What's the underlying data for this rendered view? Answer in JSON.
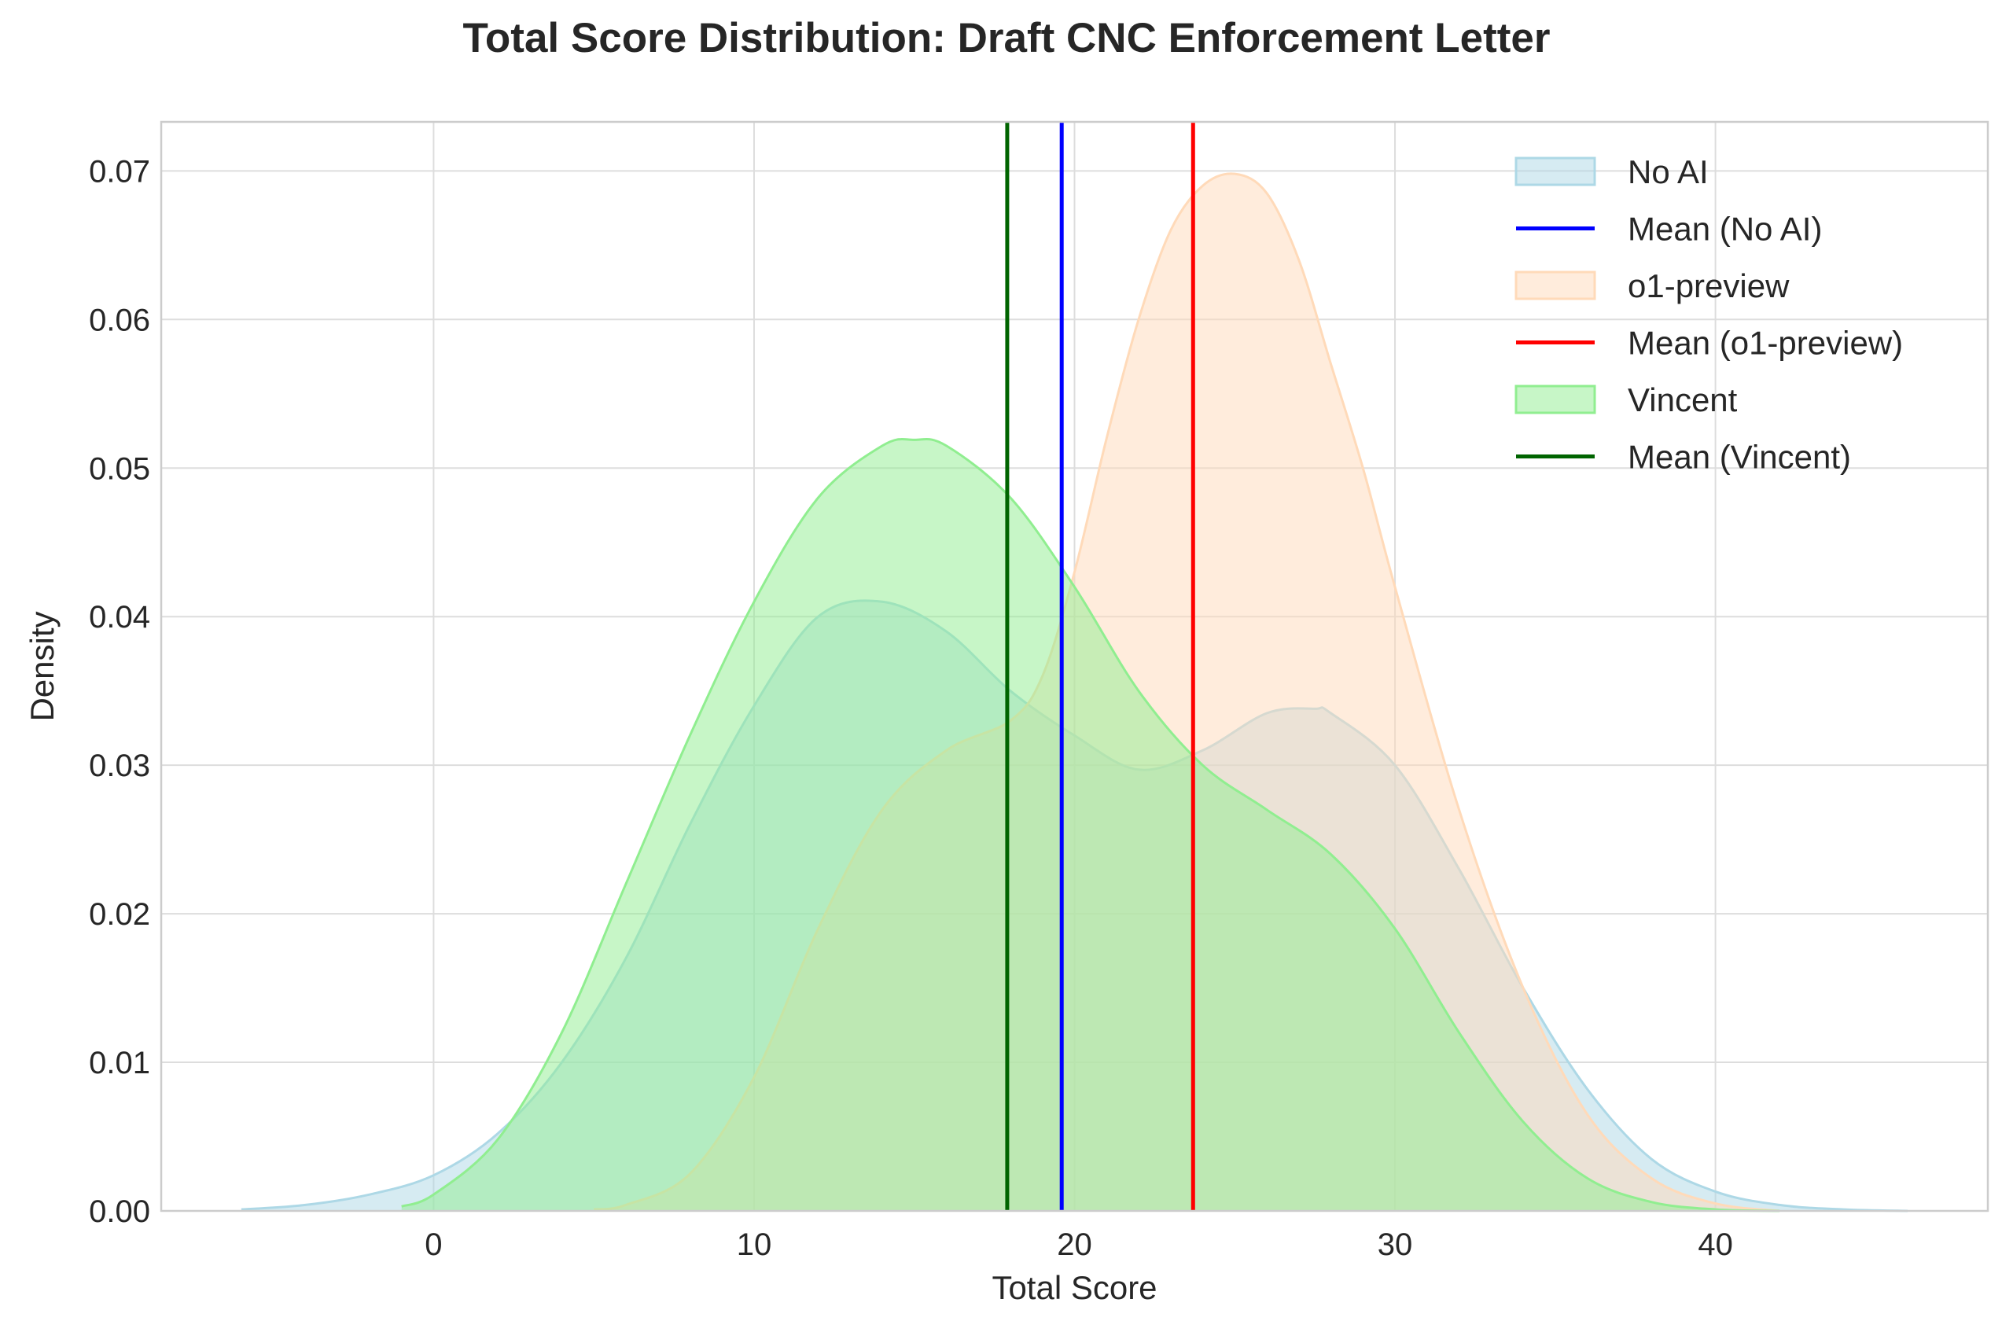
{
  "chart_data": {
    "type": "area",
    "title": "Total Score Distribution: Draft CNC Enforcement Letter",
    "xlabel": "Total Score",
    "ylabel": "Density",
    "xlim": [
      -8.5,
      48.5
    ],
    "ylim": [
      0,
      0.0733
    ],
    "xticks": [
      0,
      10,
      20,
      30,
      40
    ],
    "yticks": [
      0.0,
      0.01,
      0.02,
      0.03,
      0.04,
      0.05,
      0.06,
      0.07
    ],
    "ytick_labels": [
      "0.00",
      "0.01",
      "0.02",
      "0.03",
      "0.04",
      "0.05",
      "0.06",
      "0.07"
    ],
    "grid": true,
    "legend_position": "top-right",
    "series": [
      {
        "name": "No AI",
        "fill": "#add8e6",
        "stroke": "#add8e6",
        "fill_opacity": 0.5,
        "x": [
          -6,
          -4,
          -2,
          0,
          2,
          4,
          6,
          8,
          10,
          12,
          14,
          16,
          18,
          20,
          22,
          24,
          26,
          27.5,
          28,
          30,
          32,
          34,
          36,
          38,
          40,
          42,
          44,
          46
        ],
        "y": [
          0.0001,
          0.0004,
          0.0011,
          0.0024,
          0.0052,
          0.01,
          0.017,
          0.026,
          0.034,
          0.04,
          0.041,
          0.039,
          0.035,
          0.032,
          0.0297,
          0.031,
          0.0335,
          0.0338,
          0.0335,
          0.03,
          0.023,
          0.015,
          0.0082,
          0.0035,
          0.0013,
          0.0004,
          0.0001,
          0.0
        ]
      },
      {
        "name": "o1-preview",
        "fill": "#ffdab9",
        "stroke": "#ffdab9",
        "fill_opacity": 0.5,
        "x": [
          5,
          6,
          8,
          10,
          12,
          14,
          16,
          18,
          19,
          20,
          21,
          22,
          23,
          24,
          25,
          26,
          27,
          28,
          29,
          30,
          32,
          34,
          36,
          38,
          40,
          42
        ],
        "y": [
          0.0001,
          0.0004,
          0.0025,
          0.009,
          0.019,
          0.027,
          0.031,
          0.033,
          0.036,
          0.043,
          0.052,
          0.06,
          0.066,
          0.069,
          0.0698,
          0.0685,
          0.064,
          0.057,
          0.05,
          0.042,
          0.027,
          0.015,
          0.0065,
          0.0022,
          0.0005,
          0.0
        ]
      },
      {
        "name": "Vincent",
        "fill": "#90ee90",
        "stroke": "#90ee90",
        "fill_opacity": 0.5,
        "x": [
          -1,
          0,
          2,
          4,
          6,
          8,
          10,
          12,
          14,
          15,
          16,
          18,
          20,
          22,
          24,
          26,
          28,
          30,
          32,
          34,
          36,
          38,
          40,
          42
        ],
        "y": [
          0.0003,
          0.0011,
          0.0048,
          0.012,
          0.022,
          0.032,
          0.041,
          0.048,
          0.0515,
          0.0519,
          0.0515,
          0.048,
          0.042,
          0.035,
          0.03,
          0.027,
          0.024,
          0.019,
          0.012,
          0.006,
          0.0022,
          0.0006,
          0.0001,
          0.0
        ]
      }
    ],
    "means": [
      {
        "name": "Mean (No AI)",
        "x": 19.6,
        "color": "#0000ff"
      },
      {
        "name": "Mean (o1-preview)",
        "x": 23.7,
        "color": "#ff0000"
      },
      {
        "name": "Mean (Vincent)",
        "x": 17.9,
        "color": "#006400"
      }
    ],
    "legend": [
      {
        "label": "No AI",
        "kind": "patch",
        "color": "#add8e6"
      },
      {
        "label": "Mean (No AI)",
        "kind": "line",
        "color": "#0000ff"
      },
      {
        "label": "o1-preview",
        "kind": "patch",
        "color": "#ffdab9"
      },
      {
        "label": "Mean (o1-preview)",
        "kind": "line",
        "color": "#ff0000"
      },
      {
        "label": "Vincent",
        "kind": "patch",
        "color": "#90ee90"
      },
      {
        "label": "Mean (Vincent)",
        "kind": "line",
        "color": "#006400"
      }
    ]
  }
}
